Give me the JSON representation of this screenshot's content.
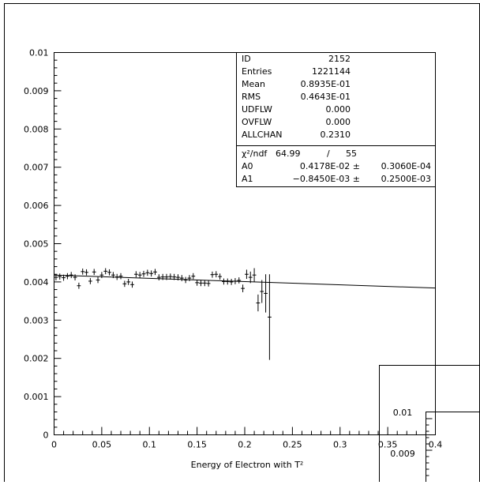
{
  "chart_data": {
    "type": "scatter",
    "title": "",
    "xlabel": "Energy of Electron with T²",
    "ylabel": "",
    "xlim": [
      0,
      0.4
    ],
    "ylim": [
      0,
      0.01
    ],
    "x_tick_labels": [
      "0",
      "0.05",
      "0.1",
      "0.15",
      "0.2",
      "0.25",
      "0.3",
      "0.35",
      "0.4"
    ],
    "x_ticks": [
      0,
      0.05,
      0.1,
      0.15,
      0.2,
      0.25,
      0.3,
      0.35,
      0.4
    ],
    "y_tick_labels": [
      "0",
      "0.001",
      "0.002",
      "0.003",
      "0.004",
      "0.005",
      "0.006",
      "0.007",
      "0.008",
      "0.009",
      "0.01"
    ],
    "y_ticks": [
      0,
      0.001,
      0.002,
      0.003,
      0.004,
      0.005,
      0.006,
      0.007,
      0.008,
      0.009,
      0.01
    ],
    "points": [
      {
        "x": 0.002,
        "y": 0.00412,
        "err": 8e-05
      },
      {
        "x": 0.006,
        "y": 0.00414,
        "err": 8e-05
      },
      {
        "x": 0.01,
        "y": 0.00411,
        "err": 8e-05
      },
      {
        "x": 0.014,
        "y": 0.00415,
        "err": 8e-05
      },
      {
        "x": 0.018,
        "y": 0.00418,
        "err": 8e-05
      },
      {
        "x": 0.022,
        "y": 0.00412,
        "err": 8e-05
      },
      {
        "x": 0.026,
        "y": 0.0039,
        "err": 8e-05
      },
      {
        "x": 0.03,
        "y": 0.00427,
        "err": 8e-05
      },
      {
        "x": 0.034,
        "y": 0.00425,
        "err": 8e-05
      },
      {
        "x": 0.038,
        "y": 0.00402,
        "err": 8e-05
      },
      {
        "x": 0.042,
        "y": 0.00426,
        "err": 8e-05
      },
      {
        "x": 0.046,
        "y": 0.00405,
        "err": 8e-05
      },
      {
        "x": 0.05,
        "y": 0.00418,
        "err": 8e-05
      },
      {
        "x": 0.054,
        "y": 0.00428,
        "err": 8e-05
      },
      {
        "x": 0.058,
        "y": 0.00425,
        "err": 8e-05
      },
      {
        "x": 0.062,
        "y": 0.00418,
        "err": 8e-05
      },
      {
        "x": 0.066,
        "y": 0.00413,
        "err": 8e-05
      },
      {
        "x": 0.07,
        "y": 0.00415,
        "err": 8e-05
      },
      {
        "x": 0.074,
        "y": 0.00395,
        "err": 8e-05
      },
      {
        "x": 0.078,
        "y": 0.004,
        "err": 8e-05
      },
      {
        "x": 0.082,
        "y": 0.00393,
        "err": 8e-05
      },
      {
        "x": 0.086,
        "y": 0.0042,
        "err": 8e-05
      },
      {
        "x": 0.09,
        "y": 0.00418,
        "err": 8e-05
      },
      {
        "x": 0.094,
        "y": 0.00421,
        "err": 8e-05
      },
      {
        "x": 0.098,
        "y": 0.00424,
        "err": 8e-05
      },
      {
        "x": 0.102,
        "y": 0.00422,
        "err": 8e-05
      },
      {
        "x": 0.106,
        "y": 0.00426,
        "err": 8e-05
      },
      {
        "x": 0.11,
        "y": 0.00412,
        "err": 8e-05
      },
      {
        "x": 0.114,
        "y": 0.00413,
        "err": 8e-05
      },
      {
        "x": 0.118,
        "y": 0.00413,
        "err": 8e-05
      },
      {
        "x": 0.122,
        "y": 0.00414,
        "err": 8e-05
      },
      {
        "x": 0.126,
        "y": 0.00413,
        "err": 8e-05
      },
      {
        "x": 0.13,
        "y": 0.00412,
        "err": 8e-05
      },
      {
        "x": 0.134,
        "y": 0.0041,
        "err": 8e-05
      },
      {
        "x": 0.138,
        "y": 0.00405,
        "err": 8e-05
      },
      {
        "x": 0.142,
        "y": 0.0041,
        "err": 8e-05
      },
      {
        "x": 0.146,
        "y": 0.00415,
        "err": 8e-05
      },
      {
        "x": 0.15,
        "y": 0.00398,
        "err": 8e-05
      },
      {
        "x": 0.154,
        "y": 0.00397,
        "err": 8e-05
      },
      {
        "x": 0.158,
        "y": 0.00397,
        "err": 8e-05
      },
      {
        "x": 0.162,
        "y": 0.00396,
        "err": 8e-05
      },
      {
        "x": 0.166,
        "y": 0.00419,
        "err": 8e-05
      },
      {
        "x": 0.17,
        "y": 0.0042,
        "err": 8e-05
      },
      {
        "x": 0.174,
        "y": 0.00414,
        "err": 8e-05
      },
      {
        "x": 0.178,
        "y": 0.00401,
        "err": 8e-05
      },
      {
        "x": 0.182,
        "y": 0.00401,
        "err": 8e-05
      },
      {
        "x": 0.186,
        "y": 0.004,
        "err": 8e-05
      },
      {
        "x": 0.19,
        "y": 0.00402,
        "err": 8e-05
      },
      {
        "x": 0.194,
        "y": 0.00404,
        "err": 8e-05
      },
      {
        "x": 0.198,
        "y": 0.00383,
        "err": 0.0001
      },
      {
        "x": 0.202,
        "y": 0.0042,
        "err": 0.00012
      },
      {
        "x": 0.206,
        "y": 0.00412,
        "err": 0.00015
      },
      {
        "x": 0.21,
        "y": 0.00418,
        "err": 0.00018
      },
      {
        "x": 0.214,
        "y": 0.00345,
        "err": 0.00022
      },
      {
        "x": 0.218,
        "y": 0.00375,
        "err": 0.0003
      },
      {
        "x": 0.222,
        "y": 0.0037,
        "err": 0.0005
      },
      {
        "x": 0.226,
        "y": 0.00308,
        "err": 0.00112
      }
    ],
    "fit": {
      "A0": 0.004178,
      "A1": -0.000845,
      "x_start": 0,
      "x_end": 0.4
    },
    "grid": false,
    "legend": "stats box top-right"
  },
  "stats": [
    {
      "label": "ID",
      "value": "2152"
    },
    {
      "label": "Entries",
      "value": "1221144"
    },
    {
      "label": "Mean",
      "value": "0.8935E-01"
    },
    {
      "label": "RMS",
      "value": "0.4643E-01"
    },
    {
      "label": "UDFLW",
      "value": "0.000"
    },
    {
      "label": "OVFLW",
      "value": "0.000"
    },
    {
      "label": "ALLCHAN",
      "value": "0.2310"
    }
  ],
  "fit_box": {
    "chi_label": "χ²/ndf",
    "chi_value": "64.99",
    "chi_sep": "/",
    "ndf": "55",
    "params": [
      {
        "name": "A0",
        "value": "0.4178E-02 ±",
        "error": "0.3060E-04"
      },
      {
        "name": "A1",
        "value": "−0.8450E-03 ±",
        "error": "0.2500E-03"
      }
    ]
  },
  "inset": {
    "label_top": "0.01",
    "label_bottom": "0.009"
  }
}
